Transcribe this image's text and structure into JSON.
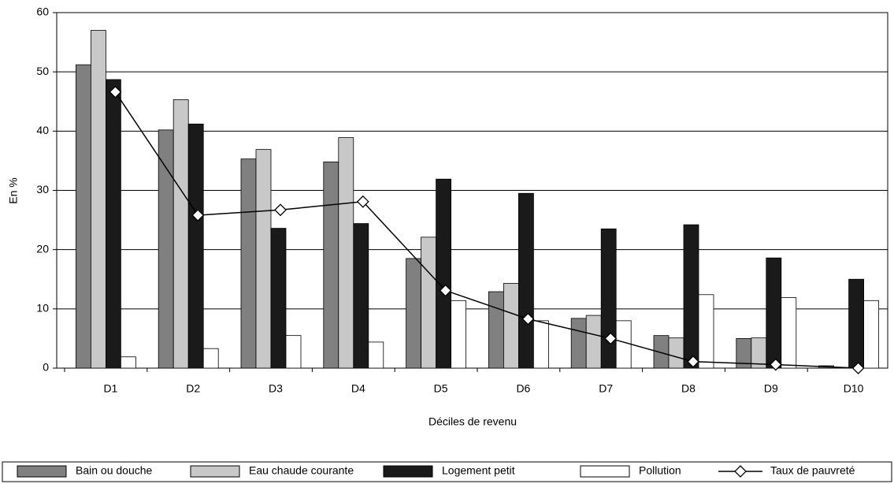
{
  "chart_data": {
    "type": "bar",
    "x_label": "Déciles de revenu",
    "y_label": "En %",
    "categories": [
      "D1",
      "D2",
      "D3",
      "D4",
      "D5",
      "D6",
      "D7",
      "D8",
      "D9",
      "D10"
    ],
    "series": [
      {
        "name": "Bain ou douche",
        "color": "#808080",
        "values": [
          51.2,
          40.2,
          35.3,
          34.8,
          18.5,
          12.9,
          8.4,
          5.5,
          5.0,
          0.4
        ]
      },
      {
        "name": "Eau chaude courante",
        "color": "#c8c8c8",
        "values": [
          57.0,
          45.3,
          36.9,
          38.9,
          22.1,
          14.3,
          8.9,
          5.1,
          5.1,
          0.1
        ]
      },
      {
        "name": "Logement petit",
        "color": "#1a1a1a",
        "values": [
          48.7,
          41.2,
          23.6,
          24.4,
          31.9,
          29.5,
          23.5,
          24.2,
          18.6,
          15.0
        ]
      },
      {
        "name": "Pollution",
        "color": "#ffffff",
        "values": [
          1.9,
          3.3,
          5.5,
          4.4,
          11.4,
          8.0,
          8.0,
          12.4,
          11.9,
          11.4
        ]
      },
      {
        "name": "Taux de pauvreté",
        "type": "line",
        "color": "#000000",
        "values": [
          46.6,
          25.8,
          26.7,
          28.1,
          13.1,
          8.3,
          5.0,
          1.1,
          0.6,
          0.0
        ]
      }
    ],
    "ylim": [
      0,
      60
    ],
    "yticks": [
      0,
      10,
      20,
      30,
      40,
      50,
      60
    ],
    "grid": true
  }
}
